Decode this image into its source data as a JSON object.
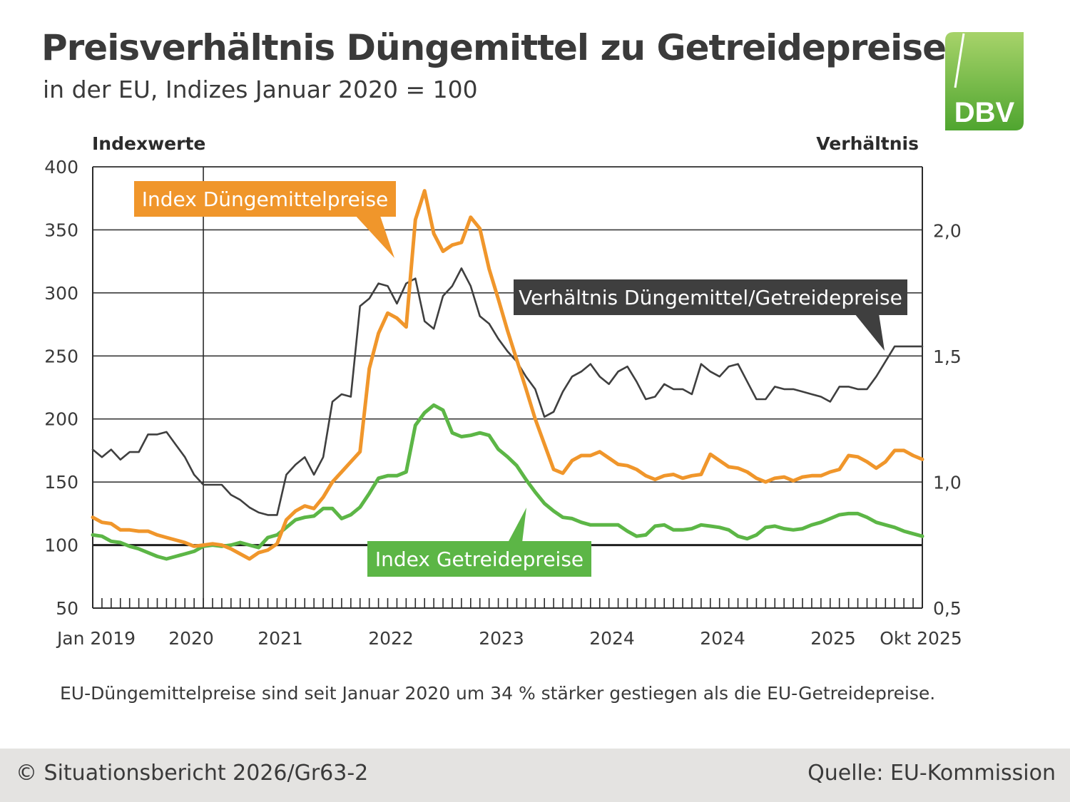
{
  "header": {
    "title": "Preisverhältnis Düngemittel zu Getreidepreisen",
    "subtitle": "in der EU, Indizes Januar 2020 = 100",
    "logo_text": "DBV"
  },
  "note": "EU-Düngemittelpreise sind seit Januar 2020 um 34 % stärker gestiegen als die EU-Getreidepreise.",
  "footer": {
    "copyright": "© Situationsbericht 2026/Gr63-2",
    "source": "Quelle: EU-Kommission"
  },
  "colors": {
    "fertilizer": "#f0962b",
    "grain": "#5cb646",
    "ratio": "#3f3f3f",
    "text": "#3a3a3a",
    "logo_green": "#6bb43a"
  },
  "chart_data": {
    "type": "line",
    "y_left_label": "Indexwerte",
    "y_right_label": "Verhältnis",
    "y_left_range": [
      50,
      400
    ],
    "y_left_ticks": [
      "400",
      "350",
      "300",
      "250",
      "200",
      "150",
      "100",
      "50"
    ],
    "y_right_range": [
      0.5,
      2.2
    ],
    "y_right_ticks": [
      "2,0",
      "1,5",
      "1,0",
      "0,5"
    ],
    "x_tick_labels": [
      "Jan 2019",
      "2020",
      "2021",
      "2022",
      "2023",
      "2024",
      "2024",
      "2025",
      "Okt 2025"
    ],
    "grid": true,
    "series": [
      {
        "name": "Index Düngemittelpreise",
        "axis": "left",
        "values": [
          122,
          118,
          117,
          112,
          112,
          111,
          111,
          108,
          106,
          104,
          102,
          99,
          100,
          101,
          100,
          97,
          93,
          89,
          94,
          96,
          101,
          120,
          127,
          131,
          129,
          138,
          150,
          158,
          166,
          174,
          240,
          268,
          284,
          280,
          273,
          358,
          381,
          347,
          333,
          338,
          340,
          360,
          351,
          319,
          295,
          270,
          247,
          224,
          200,
          180,
          160,
          157,
          167,
          171,
          171,
          174,
          169,
          164,
          163,
          160,
          155,
          152,
          155,
          156,
          153,
          155,
          156,
          172,
          167,
          162,
          161,
          158,
          153,
          150,
          153,
          154,
          151,
          154,
          155,
          155,
          158,
          160,
          171,
          170,
          166,
          161,
          166,
          175,
          175,
          171,
          168
        ],
        "labels": []
      },
      {
        "name": "Index Getreidepreise",
        "axis": "left",
        "values": [
          108,
          107,
          103,
          102,
          99,
          97,
          94,
          91,
          89,
          91,
          93,
          95,
          99,
          100,
          99,
          100,
          102,
          100,
          98,
          106,
          108,
          114,
          120,
          122,
          123,
          129,
          129,
          121,
          124,
          130,
          141,
          153,
          155,
          155,
          158,
          195,
          205,
          211,
          207,
          189,
          186,
          187,
          189,
          187,
          176,
          170,
          163,
          152,
          142,
          133,
          127,
          122,
          121,
          118,
          116,
          116,
          116,
          116,
          111,
          107,
          108,
          115,
          116,
          112,
          112,
          113,
          116,
          115,
          114,
          112,
          107,
          105,
          108,
          114,
          115,
          113,
          112,
          113,
          116,
          118,
          121,
          124,
          125,
          125,
          122,
          118,
          116,
          114,
          111,
          109,
          107
        ],
        "labels": []
      },
      {
        "name": "Verhältnis Düngemittel/Getreidepreise",
        "axis": "right",
        "values": [
          1.13,
          1.1,
          1.13,
          1.09,
          1.12,
          1.12,
          1.19,
          1.19,
          1.2,
          1.15,
          1.1,
          1.03,
          0.99,
          0.99,
          0.99,
          0.95,
          0.93,
          0.9,
          0.88,
          0.87,
          0.87,
          1.03,
          1.07,
          1.1,
          1.03,
          1.1,
          1.32,
          1.35,
          1.34,
          1.7,
          1.73,
          1.79,
          1.78,
          1.71,
          1.79,
          1.81,
          1.64,
          1.61,
          1.74,
          1.78,
          1.85,
          1.78,
          1.66,
          1.63,
          1.57,
          1.52,
          1.48,
          1.42,
          1.37,
          1.26,
          1.28,
          1.36,
          1.42,
          1.44,
          1.47,
          1.42,
          1.39,
          1.44,
          1.46,
          1.4,
          1.33,
          1.34,
          1.39,
          1.37,
          1.37,
          1.35,
          1.47,
          1.44,
          1.42,
          1.46,
          1.47,
          1.4,
          1.33,
          1.33,
          1.38,
          1.37,
          1.37,
          1.36,
          1.35,
          1.34,
          1.32,
          1.38,
          1.38,
          1.37,
          1.37,
          1.42,
          1.48,
          1.54,
          1.54,
          1.54,
          1.54
        ],
        "labels": []
      }
    ]
  }
}
